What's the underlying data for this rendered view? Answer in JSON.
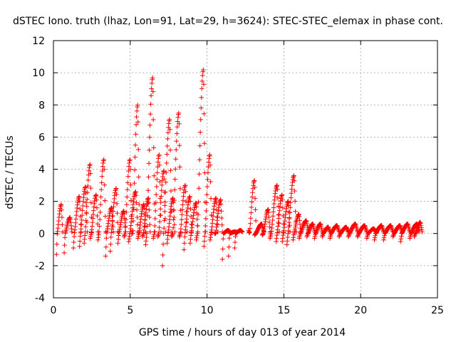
{
  "chart_data": {
    "type": "scatter",
    "title": "dSTEC Iono. truth (lhaz, Lon=91, Lat=29, h=3624): STEC-STEC_elemax in phase cont.",
    "xlabel": "GPS time / hours of day 013 of year 2014",
    "ylabel": "dSTEC  / TECUs",
    "xlim": [
      0,
      25
    ],
    "ylim": [
      -4,
      12
    ],
    "xticks": [
      0,
      5,
      10,
      15,
      20,
      25
    ],
    "yticks": [
      -4,
      -2,
      0,
      2,
      4,
      6,
      8,
      10,
      12
    ],
    "grid": true,
    "marker": "+",
    "colors": {
      "series": "#ff0000",
      "grid": "#a0a0a0",
      "axis": "#000000"
    },
    "series": [
      {
        "name": "STEC-STEC_elemax",
        "arcs": [
          {
            "t0": 0.2,
            "t1": 0.6,
            "peak": 1.8,
            "dip": -1.3
          },
          {
            "t0": 0.7,
            "t1": 1.2,
            "peak": 1.0,
            "dip": -1.2
          },
          {
            "t0": 1.3,
            "t1": 1.8,
            "peak": 2.3,
            "dip": -0.9
          },
          {
            "t0": 1.7,
            "t1": 2.2,
            "peak": 2.9,
            "dip": -0.8
          },
          {
            "t0": 2.0,
            "t1": 2.5,
            "peak": 4.3,
            "dip": -0.6
          },
          {
            "t0": 2.4,
            "t1": 2.9,
            "peak": 2.4,
            "dip": -0.3
          },
          {
            "t0": 2.9,
            "t1": 3.4,
            "peak": 4.6,
            "dip": -0.4
          },
          {
            "t0": 3.4,
            "t1": 3.9,
            "peak": 1.6,
            "dip": -1.4
          },
          {
            "t0": 3.7,
            "t1": 4.2,
            "peak": 2.8,
            "dip": -1.1
          },
          {
            "t0": 4.2,
            "t1": 4.7,
            "peak": 1.4,
            "dip": -0.6
          },
          {
            "t0": 4.6,
            "t1": 5.1,
            "peak": 4.6,
            "dip": -0.2
          },
          {
            "t0": 4.9,
            "t1": 5.5,
            "peak": 2.6,
            "dip": -0.5
          },
          {
            "t0": 5.1,
            "t1": 5.6,
            "peak": 8.0,
            "dip": 0.0
          },
          {
            "t0": 5.5,
            "t1": 6.0,
            "peak": 1.8,
            "dip": -0.3
          },
          {
            "t0": 5.8,
            "t1": 6.3,
            "peak": 2.2,
            "dip": -0.2
          },
          {
            "t0": 6.0,
            "t1": 6.6,
            "peak": 9.7,
            "dip": -0.7
          },
          {
            "t0": 6.5,
            "t1": 7.0,
            "peak": 4.9,
            "dip": -0.3
          },
          {
            "t0": 6.8,
            "t1": 7.3,
            "peak": 3.9,
            "dip": -0.2
          },
          {
            "t0": 7.1,
            "t1": 7.7,
            "peak": 7.1,
            "dip": -2.0
          },
          {
            "t0": 7.4,
            "t1": 7.9,
            "peak": 2.2,
            "dip": -0.6
          },
          {
            "t0": 7.7,
            "t1": 8.3,
            "peak": 7.5,
            "dip": -0.2
          },
          {
            "t0": 8.2,
            "t1": 8.7,
            "peak": 3.0,
            "dip": -0.2
          },
          {
            "t0": 8.5,
            "t1": 9.0,
            "peak": 2.3,
            "dip": -1.0
          },
          {
            "t0": 8.9,
            "t1": 9.4,
            "peak": 1.9,
            "dip": -0.6
          },
          {
            "t0": 9.3,
            "t1": 9.9,
            "peak": 10.2,
            "dip": -0.4
          },
          {
            "t0": 9.8,
            "t1": 10.3,
            "peak": 4.9,
            "dip": -0.8
          },
          {
            "t0": 10.2,
            "t1": 10.7,
            "peak": 2.2,
            "dip": -0.4
          },
          {
            "t0": 10.5,
            "t1": 11.0,
            "peak": 2.1,
            "dip": 0.0
          },
          {
            "t0": 11.0,
            "t1": 11.5,
            "peak": 0.2,
            "dip": -1.6
          },
          {
            "t0": 11.4,
            "t1": 11.9,
            "peak": 0.1,
            "dip": -1.4
          },
          {
            "t0": 11.8,
            "t1": 12.3,
            "peak": 0.2,
            "dip": -0.9
          },
          {
            "t0": 12.7,
            "t1": 13.2,
            "peak": 3.3,
            "dip": 0.2
          },
          {
            "t0": 13.1,
            "t1": 13.7,
            "peak": 0.6,
            "dip": -0.1
          },
          {
            "t0": 13.6,
            "t1": 14.1,
            "peak": 1.5,
            "dip": -0.1
          },
          {
            "t0": 14.1,
            "t1": 14.7,
            "peak": 3.0,
            "dip": -0.3
          },
          {
            "t0": 14.5,
            "t1": 15.0,
            "peak": 2.4,
            "dip": -0.5
          },
          {
            "t0": 14.9,
            "t1": 15.4,
            "peak": 2.0,
            "dip": -0.5
          },
          {
            "t0": 15.2,
            "t1": 15.8,
            "peak": 3.6,
            "dip": -0.7
          },
          {
            "t0": 15.6,
            "t1": 16.1,
            "peak": 1.2,
            "dip": -0.4
          },
          {
            "t0": 16.0,
            "t1": 16.6,
            "peak": 0.8,
            "dip": -0.3
          },
          {
            "t0": 16.5,
            "t1": 17.0,
            "peak": 0.6,
            "dip": -0.2
          },
          {
            "t0": 17.0,
            "t1": 17.5,
            "peak": 0.6,
            "dip": -0.3
          },
          {
            "t0": 17.5,
            "t1": 18.0,
            "peak": 0.4,
            "dip": -0.2
          },
          {
            "t0": 18.0,
            "t1": 18.6,
            "peak": 0.5,
            "dip": -0.3
          },
          {
            "t0": 18.6,
            "t1": 19.2,
            "peak": 0.4,
            "dip": -0.2
          },
          {
            "t0": 19.2,
            "t1": 19.8,
            "peak": 0.6,
            "dip": -0.2
          },
          {
            "t0": 19.8,
            "t1": 20.4,
            "peak": 0.5,
            "dip": -0.2
          },
          {
            "t0": 20.4,
            "t1": 21.0,
            "peak": 0.3,
            "dip": -0.3
          },
          {
            "t0": 20.9,
            "t1": 21.5,
            "peak": 0.5,
            "dip": -0.4
          },
          {
            "t0": 21.5,
            "t1": 22.1,
            "peak": 0.5,
            "dip": -0.4
          },
          {
            "t0": 22.1,
            "t1": 22.7,
            "peak": 0.5,
            "dip": -0.2
          },
          {
            "t0": 22.6,
            "t1": 23.2,
            "peak": 0.6,
            "dip": -0.5
          },
          {
            "t0": 23.2,
            "t1": 23.8,
            "peak": 0.6,
            "dip": -0.3
          },
          {
            "t0": 23.5,
            "t1": 24.0,
            "peak": 0.7,
            "dip": -0.2
          }
        ]
      }
    ]
  }
}
